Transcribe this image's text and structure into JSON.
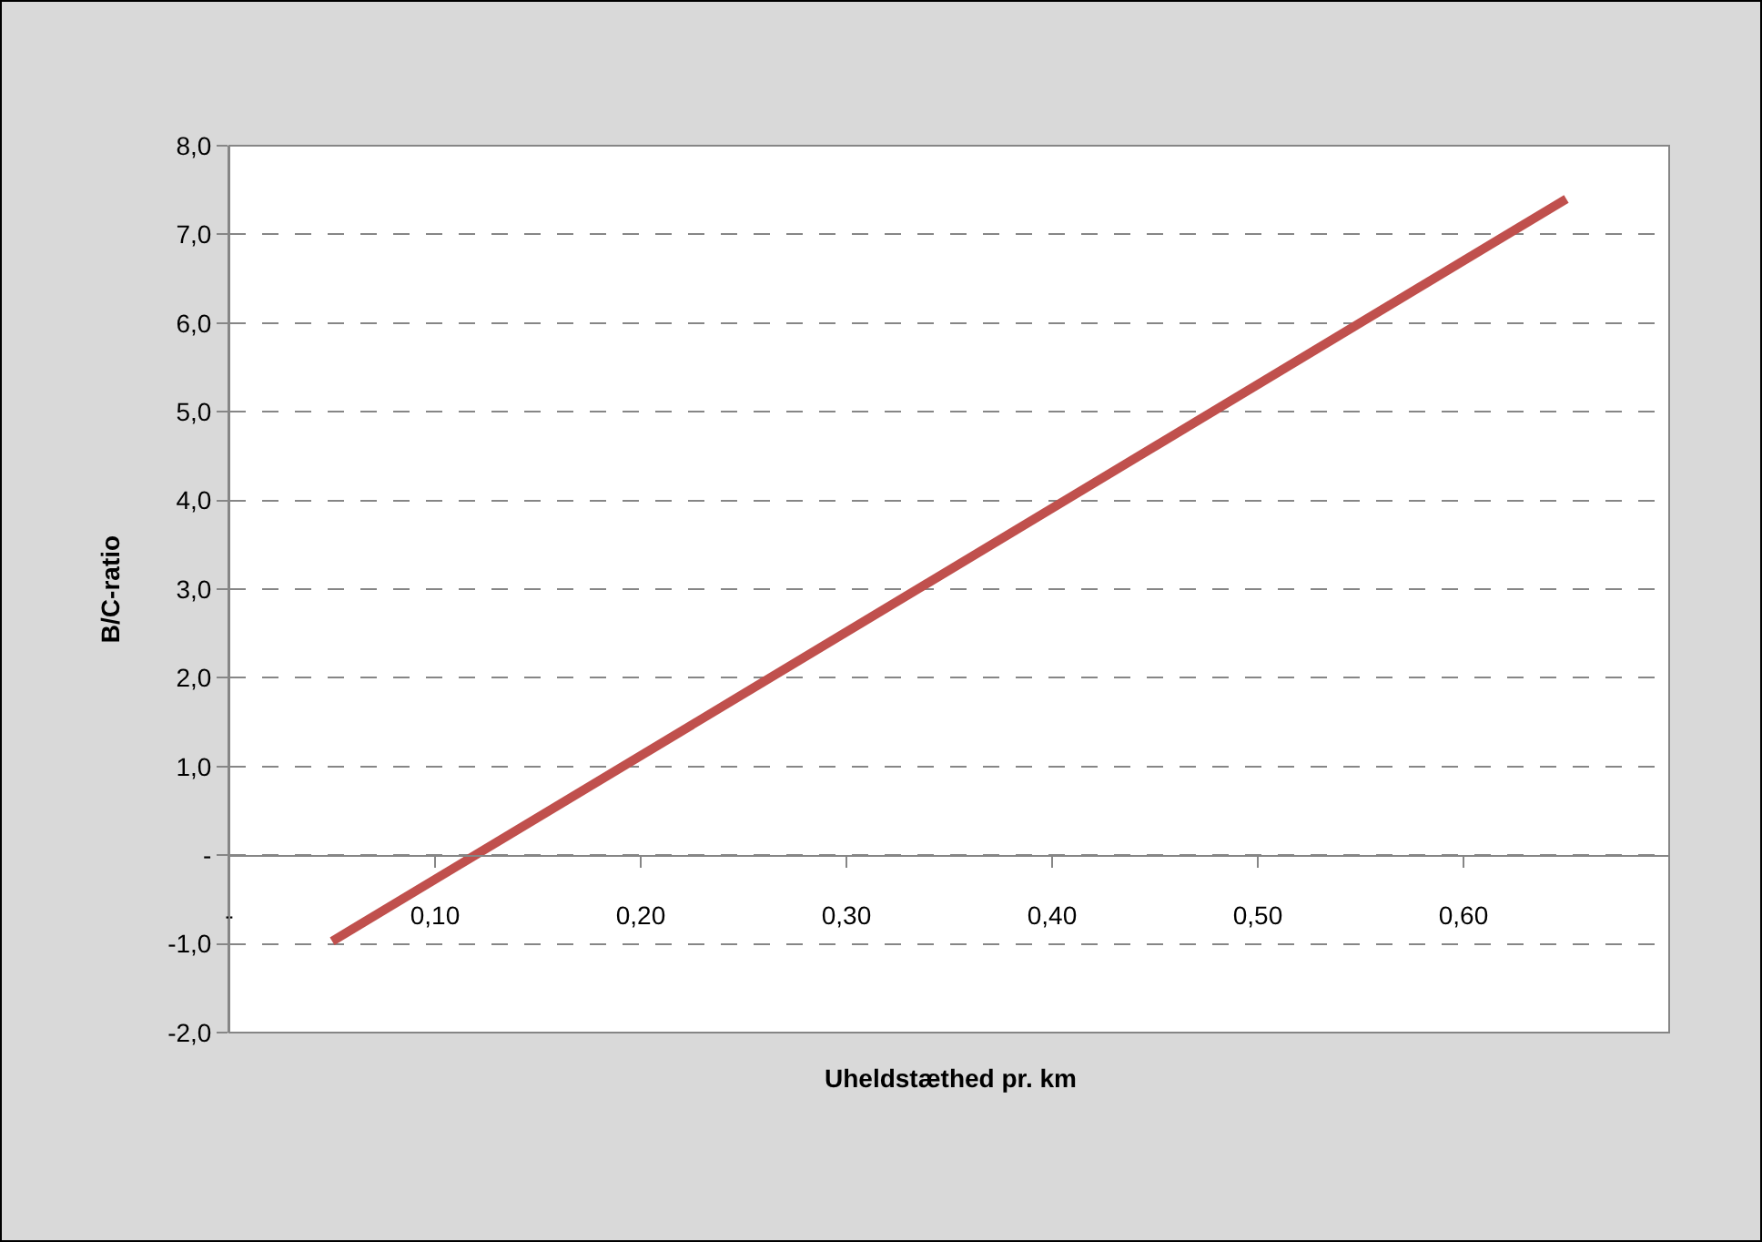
{
  "chart_data": {
    "type": "line",
    "xlabel": "Uheldstæthed pr. km",
    "ylabel": "B/C-ratio",
    "x": [
      0.05,
      0.65
    ],
    "series": [
      {
        "color": "#c0504d",
        "values": [
          -0.97,
          7.4
        ]
      }
    ],
    "xlim": [
      0,
      0.7
    ],
    "xticks": [
      {
        "value": 0,
        "label": "-"
      },
      {
        "value": 0.1,
        "label": "0,10"
      },
      {
        "value": 0.2,
        "label": "0,20"
      },
      {
        "value": 0.3,
        "label": "0,30"
      },
      {
        "value": 0.4,
        "label": "0,40"
      },
      {
        "value": 0.5,
        "label": "0,50"
      },
      {
        "value": 0.6,
        "label": "0,60"
      }
    ],
    "ylim": [
      -2,
      8
    ],
    "yticks": [
      {
        "value": -2,
        "label": "-2,0"
      },
      {
        "value": -1,
        "label": "-1,0"
      },
      {
        "value": 0,
        "label": "-"
      },
      {
        "value": 1,
        "label": "1,0"
      },
      {
        "value": 2,
        "label": "2,0"
      },
      {
        "value": 3,
        "label": "3,0"
      },
      {
        "value": 4,
        "label": "4,0"
      },
      {
        "value": 5,
        "label": "5,0"
      },
      {
        "value": 6,
        "label": "6,0"
      },
      {
        "value": 7,
        "label": "7,0"
      },
      {
        "value": 8,
        "label": "8,0"
      }
    ],
    "grid": "y",
    "marker": "none",
    "line_style": "solid"
  }
}
